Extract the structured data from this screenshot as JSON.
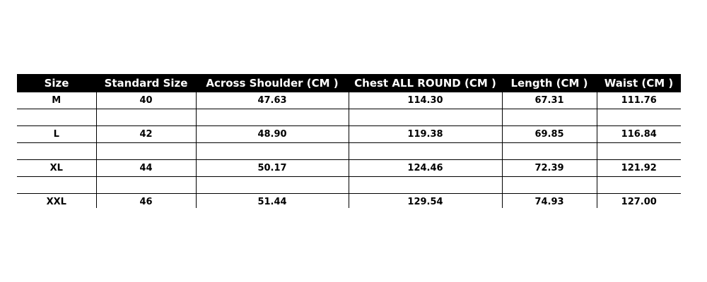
{
  "headers": [
    "Size",
    "Standard Size",
    "Across Shoulder (CM )",
    "Chest ALL ROUND (CM )",
    "Length (CM )",
    "Waist (CM )"
  ],
  "rows": [
    [
      "M",
      "40",
      "47.63",
      "114.30",
      "67.31",
      "111.76"
    ],
    [
      "",
      "",
      "",
      "",
      "",
      ""
    ],
    [
      "L",
      "42",
      "48.90",
      "119.38",
      "69.85",
      "116.84"
    ],
    [
      "",
      "",
      "",
      "",
      "",
      ""
    ],
    [
      "XL",
      "44",
      "50.17",
      "124.46",
      "72.39",
      "121.92"
    ],
    [
      "",
      "",
      "",
      "",
      "",
      ""
    ],
    [
      "XXL",
      "46",
      "51.44",
      "129.54",
      "74.93",
      "127.00"
    ]
  ]
}
